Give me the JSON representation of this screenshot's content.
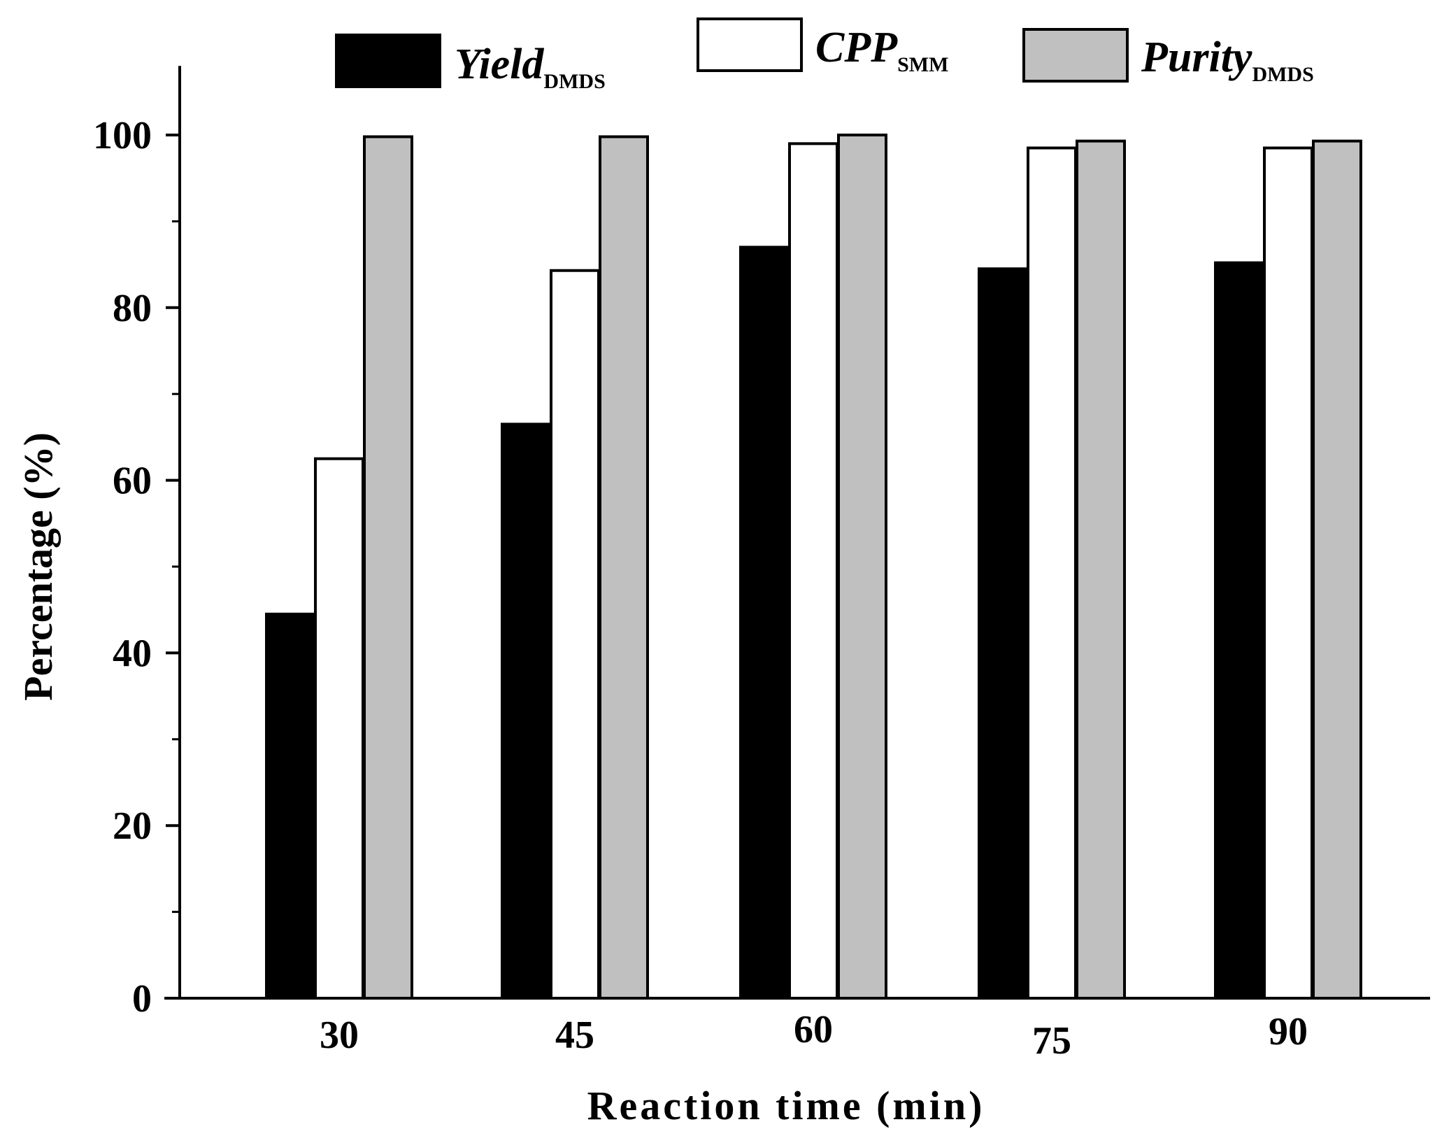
{
  "chart_data": {
    "type": "bar",
    "title": "",
    "xlabel": "Reaction time (min)",
    "ylabel": "Percentage (%)",
    "categories": [
      "30",
      "45",
      "60",
      "75",
      "90"
    ],
    "ylim": [
      0,
      108
    ],
    "yticks": [
      0,
      20,
      40,
      60,
      80,
      100
    ],
    "yticks_minor": [
      10,
      30,
      50,
      70,
      90
    ],
    "series": [
      {
        "name": "Yield",
        "subscript": "DMDS",
        "color": "#000000",
        "values": [
          44.5,
          66.5,
          87.0,
          84.5,
          85.2
        ]
      },
      {
        "name": "CPP",
        "subscript": "SMM",
        "color": "#ffffff",
        "values": [
          62.5,
          84.3,
          99.0,
          98.5,
          98.5
        ]
      },
      {
        "name": "Purity",
        "subscript": "DMDS",
        "color": "#c0c0c0",
        "values": [
          99.8,
          99.8,
          100.0,
          99.3,
          99.3
        ]
      }
    ],
    "legend_position": "top",
    "grid": false
  }
}
